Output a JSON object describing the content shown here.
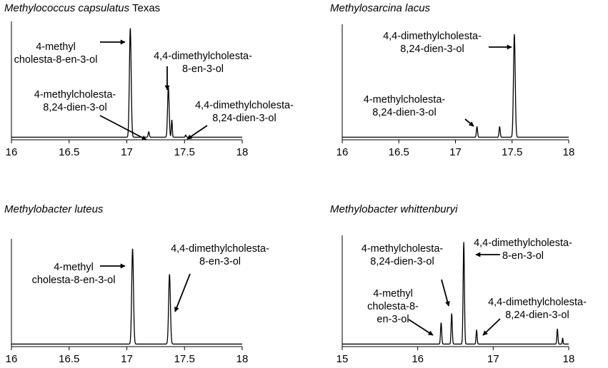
{
  "chart_data": [
    {
      "type": "line",
      "title_italic": "Methylococcus capsulatus",
      "title_plain": " Texas",
      "xlim": [
        16,
        18
      ],
      "xticks": [
        "16",
        "16.5",
        "17",
        "17.5",
        "18"
      ],
      "peaks": [
        {
          "x": 17.03,
          "height": 1.0,
          "width": 0.018
        },
        {
          "x": 17.19,
          "height": 0.05,
          "width": 0.012
        },
        {
          "x": 17.36,
          "height": 0.46,
          "width": 0.016
        },
        {
          "x": 17.39,
          "height": 0.16,
          "width": 0.01
        },
        {
          "x": 17.51,
          "height": 0.02,
          "width": 0.01
        }
      ],
      "annotations": [
        {
          "lines": [
            "4-methyl",
            "cholesta-8-en-3-ol"
          ]
        },
        {
          "lines": [
            "4,4-dimethylcholesta-",
            "8-en-3-ol"
          ]
        },
        {
          "lines": [
            "4-methylcholesta-",
            "8,24-dien-3-ol"
          ]
        },
        {
          "lines": [
            "4,4-dimethylcholesta-",
            "8,24-dien-3-ol"
          ]
        }
      ]
    },
    {
      "type": "line",
      "title_italic": "Methylosarcina lacus",
      "title_plain": "",
      "xlim": [
        16,
        18
      ],
      "xticks": [
        "16",
        "16.5",
        "17",
        "17.5",
        "18"
      ],
      "peaks": [
        {
          "x": 17.19,
          "height": 0.1,
          "width": 0.012
        },
        {
          "x": 17.39,
          "height": 0.1,
          "width": 0.012
        },
        {
          "x": 17.52,
          "height": 0.97,
          "width": 0.018
        }
      ],
      "annotations": [
        {
          "lines": [
            "4,4-dimethylcholesta-",
            "8,24-dien-3-ol"
          ]
        },
        {
          "lines": [
            "4-methylcholesta-",
            "8,24-dien-3-ol"
          ]
        }
      ]
    },
    {
      "type": "line",
      "title_italic": "Methylobacter luteus",
      "title_plain": "",
      "xlim": [
        16,
        18
      ],
      "xticks": [
        "16",
        "16.5",
        "17",
        "17.5",
        "18"
      ],
      "peaks": [
        {
          "x": 17.05,
          "height": 0.97,
          "width": 0.018
        },
        {
          "x": 17.37,
          "height": 0.71,
          "width": 0.018
        }
      ],
      "annotations": [
        {
          "lines": [
            "4-methyl",
            "cholesta-8-en-3-ol"
          ]
        },
        {
          "lines": [
            "4,4-dimethylcholesta-",
            "8-en-3-ol"
          ]
        }
      ]
    },
    {
      "type": "line",
      "title_italic": "Methylobacter whittenburyi",
      "title_plain": "",
      "xlim": [
        15,
        18
      ],
      "xticks": [
        "15",
        "16",
        "17",
        "18"
      ],
      "peaks": [
        {
          "x": 16.31,
          "height": 0.21,
          "width": 0.018
        },
        {
          "x": 16.45,
          "height": 0.3,
          "width": 0.018
        },
        {
          "x": 16.61,
          "height": 1.0,
          "width": 0.02
        },
        {
          "x": 16.78,
          "height": 0.14,
          "width": 0.016
        },
        {
          "x": 17.85,
          "height": 0.15,
          "width": 0.016
        },
        {
          "x": 17.92,
          "height": 0.06,
          "width": 0.012
        }
      ],
      "annotations": [
        {
          "lines": [
            "4-methylcholesta-",
            "8,24-dien-3-ol"
          ]
        },
        {
          "lines": [
            "4,4-dimethylcholesta-",
            "8-en-3-ol"
          ]
        },
        {
          "lines": [
            "4-methyl",
            "cholesta-8-",
            "en-3-ol"
          ]
        },
        {
          "lines": [
            "4,4-dimethylcholesta-",
            "8,24-dien-3-ol"
          ]
        }
      ]
    }
  ]
}
